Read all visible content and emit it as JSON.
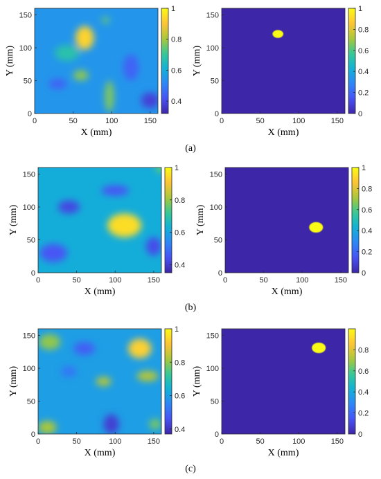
{
  "captions": [
    "(a)",
    "(b)",
    "(c)"
  ],
  "chart_data": [
    {
      "type": "heatmap",
      "kind": "field",
      "xlabel": "X (mm)",
      "ylabel": "Y (mm)",
      "xlim": [
        0,
        160
      ],
      "ylim": [
        0,
        160
      ],
      "xticks": [
        0,
        50,
        100,
        150
      ],
      "yticks": [
        0,
        50,
        100,
        150
      ],
      "clim": [
        0.32,
        1
      ],
      "colorbar_ticks": [
        0.4,
        0.6,
        0.8,
        1
      ],
      "colormap": "parula",
      "background_value": 0.55,
      "hotspots": [
        {
          "x": 65,
          "y": 115,
          "rx": 12,
          "ry": 18,
          "value": 0.93
        },
        {
          "x": 60,
          "y": 58,
          "rx": 10,
          "ry": 8,
          "value": 0.78
        },
        {
          "x": 97,
          "y": 26,
          "rx": 6,
          "ry": 24,
          "value": 0.77
        },
        {
          "x": 92,
          "y": 142,
          "rx": 5,
          "ry": 5,
          "value": 0.75
        },
        {
          "x": 42,
          "y": 92,
          "rx": 16,
          "ry": 12,
          "value": 0.68
        }
      ],
      "lowspots": [
        {
          "x": 150,
          "y": 20,
          "rx": 12,
          "ry": 12,
          "value": 0.38
        },
        {
          "x": 30,
          "y": 45,
          "rx": 12,
          "ry": 8,
          "value": 0.45
        },
        {
          "x": 125,
          "y": 70,
          "rx": 10,
          "ry": 20,
          "value": 0.45
        }
      ]
    },
    {
      "type": "heatmap",
      "kind": "mask",
      "xlabel": "X (mm)",
      "ylabel": "Y (mm)",
      "xlim": [
        0,
        160
      ],
      "ylim": [
        0,
        160
      ],
      "xticks": [
        0,
        50,
        100,
        150
      ],
      "yticks": [
        0,
        50,
        100,
        150
      ],
      "clim": [
        0,
        1
      ],
      "colorbar_ticks": [
        0,
        0.2,
        0.4,
        0.6,
        0.8,
        1
      ],
      "colormap": "parula",
      "background_value": 0,
      "region": {
        "x": 73,
        "y": 121,
        "rx": 7,
        "ry": 6,
        "value": 1
      }
    },
    {
      "type": "heatmap",
      "kind": "field",
      "xlabel": "X (mm)",
      "ylabel": "Y (mm)",
      "xlim": [
        0,
        160
      ],
      "ylim": [
        0,
        160
      ],
      "xticks": [
        0,
        50,
        100,
        150
      ],
      "yticks": [
        0,
        50,
        100,
        150
      ],
      "clim": [
        0.35,
        1
      ],
      "colorbar_ticks": [
        0.4,
        0.6,
        0.8,
        1
      ],
      "colormap": "parula",
      "background_value": 0.62,
      "hotspots": [
        {
          "x": 112,
          "y": 72,
          "rx": 22,
          "ry": 18,
          "value": 0.95
        },
        {
          "x": 160,
          "y": 160,
          "rx": 8,
          "ry": 8,
          "value": 0.75
        }
      ],
      "lowspots": [
        {
          "x": 40,
          "y": 100,
          "rx": 14,
          "ry": 10,
          "value": 0.42
        },
        {
          "x": 20,
          "y": 30,
          "rx": 18,
          "ry": 14,
          "value": 0.45
        },
        {
          "x": 150,
          "y": 40,
          "rx": 10,
          "ry": 14,
          "value": 0.43
        },
        {
          "x": 100,
          "y": 125,
          "rx": 18,
          "ry": 8,
          "value": 0.45
        }
      ]
    },
    {
      "type": "heatmap",
      "kind": "mask",
      "xlabel": "X (mm)",
      "ylabel": "Y (mm)",
      "xlim": [
        0,
        160
      ],
      "ylim": [
        0,
        160
      ],
      "xticks": [
        0,
        50,
        100,
        150
      ],
      "yticks": [
        0,
        50,
        100,
        150
      ],
      "clim": [
        0,
        1
      ],
      "colorbar_ticks": [
        0,
        0.2,
        0.4,
        0.6,
        0.8,
        1
      ],
      "colormap": "parula",
      "background_value": 0,
      "region": {
        "x": 118,
        "y": 69,
        "rx": 9,
        "ry": 8,
        "value": 1
      }
    },
    {
      "type": "heatmap",
      "kind": "field",
      "xlabel": "X (mm)",
      "ylabel": "Y (mm)",
      "xlim": [
        0,
        160
      ],
      "ylim": [
        0,
        160
      ],
      "xticks": [
        0,
        50,
        100,
        150
      ],
      "yticks": [
        0,
        50,
        100,
        150
      ],
      "clim": [
        0.37,
        1
      ],
      "colorbar_ticks": [
        0.4,
        0.6,
        0.8,
        1
      ],
      "colormap": "parula",
      "background_value": 0.6,
      "hotspots": [
        {
          "x": 132,
          "y": 130,
          "rx": 15,
          "ry": 15,
          "value": 0.93
        },
        {
          "x": 142,
          "y": 88,
          "rx": 14,
          "ry": 8,
          "value": 0.83
        },
        {
          "x": 85,
          "y": 80,
          "rx": 10,
          "ry": 7,
          "value": 0.83
        },
        {
          "x": 15,
          "y": 140,
          "rx": 14,
          "ry": 12,
          "value": 0.8
        },
        {
          "x": 12,
          "y": 10,
          "rx": 12,
          "ry": 10,
          "value": 0.82
        },
        {
          "x": 152,
          "y": 15,
          "rx": 8,
          "ry": 8,
          "value": 0.78
        }
      ],
      "lowspots": [
        {
          "x": 95,
          "y": 15,
          "rx": 10,
          "ry": 15,
          "value": 0.42
        },
        {
          "x": 60,
          "y": 130,
          "rx": 14,
          "ry": 10,
          "value": 0.48
        },
        {
          "x": 40,
          "y": 95,
          "rx": 10,
          "ry": 8,
          "value": 0.52
        }
      ]
    },
    {
      "type": "heatmap",
      "kind": "mask",
      "xlabel": "X (mm)",
      "ylabel": "Y (mm)",
      "xlim": [
        0,
        160
      ],
      "ylim": [
        0,
        160
      ],
      "xticks": [
        0,
        50,
        100,
        150
      ],
      "yticks": [
        0,
        50,
        100,
        150
      ],
      "clim": [
        0,
        1
      ],
      "colorbar_ticks": [
        0,
        0.2,
        0.4,
        0.6,
        0.8
      ],
      "colormap": "parula",
      "background_value": 0,
      "region": {
        "x": 126,
        "y": 131,
        "rx": 9,
        "ry": 8,
        "value": 1
      }
    }
  ]
}
